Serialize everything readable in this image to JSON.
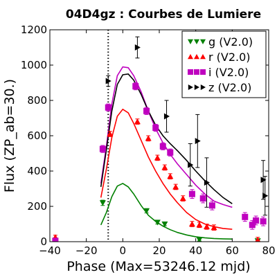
{
  "chart_data": {
    "type": "scatter",
    "title": "04D4gz : Courbes de Lumiere",
    "xlabel": "Phase (Max=53246.12 mjd)",
    "ylabel": "Flux (ZP_ab=30.)",
    "xlim": [
      -40,
      80
    ],
    "ylim": [
      0,
      1200
    ],
    "xticks": [
      -40,
      -20,
      0,
      20,
      40,
      60,
      80
    ],
    "yticks": [
      0,
      200,
      400,
      600,
      800,
      1000,
      1200
    ],
    "xtick_labels": [
      "−40",
      "−20",
      "0",
      "20",
      "40",
      "60",
      "80"
    ],
    "ytick_labels": [
      "0",
      "200",
      "400",
      "600",
      "800",
      "1000",
      "1200"
    ],
    "vline_x": -8,
    "grid": false,
    "legend_position": "top-right",
    "series": [
      {
        "name": "g (V2.0)",
        "color": "#008000",
        "marker": "triangle-down",
        "points": [
          {
            "x": -37,
            "y": 5,
            "err": 10
          },
          {
            "x": -11,
            "y": 220,
            "err": 15
          },
          {
            "x": 13,
            "y": 175,
            "err": 12
          },
          {
            "x": 19,
            "y": 110,
            "err": 10
          },
          {
            "x": 23,
            "y": 100,
            "err": 10
          },
          {
            "x": 42,
            "y": 12,
            "err": 8
          },
          {
            "x": 74,
            "y": 5,
            "err": 8
          }
        ],
        "curve_x": [
          -12,
          -9,
          -6,
          -3,
          0,
          3,
          6,
          10,
          14,
          18,
          22,
          26,
          30,
          35,
          40,
          45,
          50,
          55,
          60
        ],
        "curve_y": [
          95,
          165,
          255,
          315,
          330,
          310,
          270,
          205,
          150,
          115,
          88,
          68,
          52,
          38,
          28,
          22,
          18,
          16,
          15
        ]
      },
      {
        "name": "r (V2.0)",
        "color": "#ff0000",
        "marker": "triangle-up",
        "points": [
          {
            "x": -37,
            "y": 25,
            "err": 12
          },
          {
            "x": -7,
            "y": 610,
            "err": 15
          },
          {
            "x": 8,
            "y": 680,
            "err": 15
          },
          {
            "x": 14,
            "y": 585,
            "err": 15
          },
          {
            "x": 19,
            "y": 475,
            "err": 15
          },
          {
            "x": 23,
            "y": 420,
            "err": 15
          },
          {
            "x": 26,
            "y": 370,
            "err": 15
          },
          {
            "x": 29,
            "y": 310,
            "err": 15
          },
          {
            "x": 33,
            "y": 245,
            "err": 15
          },
          {
            "x": 38,
            "y": 100,
            "err": 15
          },
          {
            "x": 42,
            "y": 95,
            "err": 15
          },
          {
            "x": 46,
            "y": 85,
            "err": 15
          },
          {
            "x": 50,
            "y": 80,
            "err": 15
          },
          {
            "x": 74,
            "y": 10,
            "err": 15
          }
        ],
        "curve_x": [
          -12,
          -9,
          -6,
          -3,
          0,
          3,
          6,
          10,
          14,
          18,
          22,
          26,
          30,
          35,
          40,
          45,
          50,
          55,
          60
        ],
        "curve_y": [
          250,
          410,
          590,
          710,
          750,
          730,
          670,
          575,
          480,
          400,
          330,
          270,
          220,
          165,
          125,
          100,
          85,
          75,
          70
        ]
      },
      {
        "name": "i (V2.0)",
        "color": "#bf00bf",
        "marker": "square",
        "points": [
          {
            "x": -37,
            "y": 5,
            "err": 10
          },
          {
            "x": -11,
            "y": 525,
            "err": 20
          },
          {
            "x": -8,
            "y": 760,
            "err": 20
          },
          {
            "x": 7,
            "y": 880,
            "err": 20
          },
          {
            "x": 13,
            "y": 740,
            "err": 20
          },
          {
            "x": 18,
            "y": 645,
            "err": 20
          },
          {
            "x": 22,
            "y": 540,
            "err": 20
          },
          {
            "x": 26,
            "y": 505,
            "err": 20
          },
          {
            "x": 38,
            "y": 270,
            "err": 25
          },
          {
            "x": 44,
            "y": 245,
            "err": 25
          },
          {
            "x": 49,
            "y": 205,
            "err": 25
          },
          {
            "x": 67,
            "y": 140,
            "err": 25
          },
          {
            "x": 71,
            "y": 95,
            "err": 25
          },
          {
            "x": 73,
            "y": 120,
            "err": 25
          },
          {
            "x": 77,
            "y": 115,
            "err": 25
          }
        ],
        "curve_x": [
          -12,
          -9,
          -6,
          -3,
          0,
          3,
          6,
          10,
          14,
          18,
          22,
          26,
          30,
          35,
          40,
          45,
          50,
          55,
          60
        ],
        "curve_y": [
          330,
          540,
          780,
          940,
          990,
          985,
          940,
          850,
          740,
          640,
          560,
          495,
          440,
          380,
          320,
          270,
          230,
          210,
          195
        ]
      },
      {
        "name": "z (V2.0)",
        "color": "#000000",
        "marker": "triangle-right",
        "points": [
          {
            "x": -8,
            "y": 910,
            "err": 30
          },
          {
            "x": 8,
            "y": 1100,
            "err": 60
          },
          {
            "x": 24,
            "y": 710,
            "err": 90
          },
          {
            "x": 37,
            "y": 435,
            "err": 120
          },
          {
            "x": 41,
            "y": 570,
            "err": 150
          },
          {
            "x": 46,
            "y": 335,
            "err": 140
          },
          {
            "x": 77,
            "y": 350,
            "err": 110
          },
          {
            "x": 78,
            "y": 260,
            "err": 110
          }
        ],
        "curve_x": [
          -12,
          -9,
          -6,
          -3,
          0,
          3,
          6,
          10,
          14,
          18,
          22,
          26,
          30,
          35,
          40,
          45,
          50,
          55,
          60
        ],
        "curve_y": [
          310,
          520,
          740,
          890,
          945,
          950,
          915,
          835,
          740,
          660,
          600,
          555,
          515,
          460,
          400,
          345,
          295,
          250,
          215
        ]
      }
    ]
  }
}
